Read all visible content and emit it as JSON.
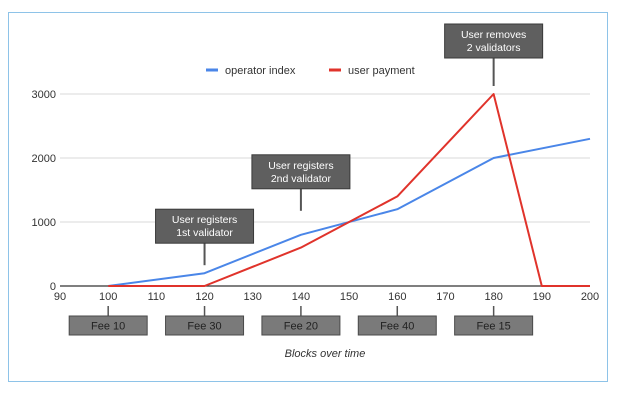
{
  "chart_data": {
    "type": "line",
    "title": "",
    "xlabel": "Blocks over time",
    "ylabel": "",
    "xlim": [
      90,
      200
    ],
    "ylim": [
      0,
      3000
    ],
    "x_ticks": [
      90,
      100,
      110,
      120,
      130,
      140,
      150,
      160,
      170,
      180,
      190,
      200
    ],
    "y_ticks": [
      0,
      1000,
      2000,
      3000
    ],
    "grid": "horizontal",
    "legend_position": "top",
    "series": [
      {
        "name": "operator index",
        "color": "#4a86e8",
        "points": [
          [
            100,
            0
          ],
          [
            120,
            200
          ],
          [
            140,
            800
          ],
          [
            160,
            1200
          ],
          [
            180,
            2000
          ],
          [
            200,
            2300
          ]
        ]
      },
      {
        "name": "user payment",
        "color": "#e0332b",
        "points": [
          [
            100,
            0
          ],
          [
            120,
            0
          ],
          [
            140,
            600
          ],
          [
            160,
            1400
          ],
          [
            180,
            3000
          ],
          [
            190,
            0
          ],
          [
            200,
            0
          ]
        ]
      }
    ],
    "annotations": [
      {
        "lines": [
          "User registers",
          "1st validator"
        ],
        "x": 120,
        "y": 200
      },
      {
        "lines": [
          "User registers",
          "2nd validator"
        ],
        "x": 140,
        "y": 1050
      },
      {
        "lines": [
          "User removes",
          "2 validators"
        ],
        "x": 180,
        "y": 3000
      }
    ],
    "fee_labels": [
      {
        "label": "Fee 10",
        "x": 100
      },
      {
        "label": "Fee 30",
        "x": 120
      },
      {
        "label": "Fee 20",
        "x": 140
      },
      {
        "label": "Fee 40",
        "x": 160
      },
      {
        "label": "Fee 15",
        "x": 180
      }
    ]
  }
}
